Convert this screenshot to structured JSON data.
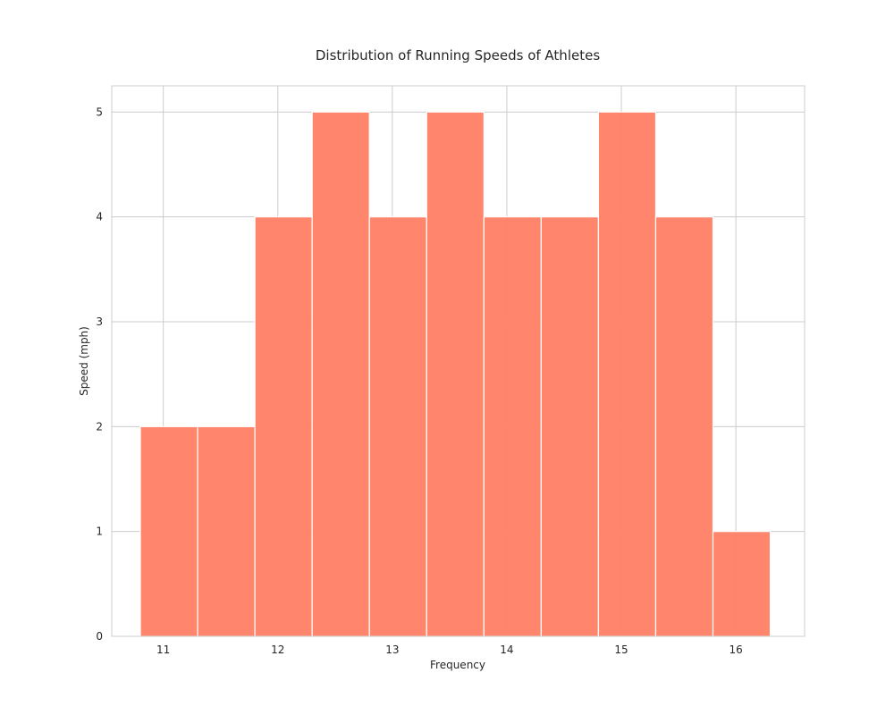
{
  "chart_data": {
    "type": "bar",
    "title": "Distribution of Running Speeds of Athletes",
    "xlabel": "Frequency",
    "ylabel": "Speed (mph)",
    "xlim": [
      10.55,
      16.6
    ],
    "ylim": [
      0,
      5.25
    ],
    "xticks": [
      11,
      12,
      13,
      14,
      15,
      16
    ],
    "yticks": [
      0,
      1,
      2,
      3,
      4,
      5
    ],
    "grid": true,
    "bar_color": "#ff7f64",
    "bins": [
      {
        "start": 10.8,
        "end": 11.3,
        "value": 2
      },
      {
        "start": 11.3,
        "end": 11.8,
        "value": 2
      },
      {
        "start": 11.8,
        "end": 12.3,
        "value": 4
      },
      {
        "start": 12.3,
        "end": 12.8,
        "value": 5
      },
      {
        "start": 12.8,
        "end": 13.3,
        "value": 4
      },
      {
        "start": 13.3,
        "end": 13.8,
        "value": 5
      },
      {
        "start": 13.8,
        "end": 14.3,
        "value": 4
      },
      {
        "start": 14.3,
        "end": 14.8,
        "value": 4
      },
      {
        "start": 14.8,
        "end": 15.3,
        "value": 5
      },
      {
        "start": 15.3,
        "end": 15.8,
        "value": 4
      },
      {
        "start": 15.8,
        "end": 16.3,
        "value": 1
      }
    ]
  }
}
